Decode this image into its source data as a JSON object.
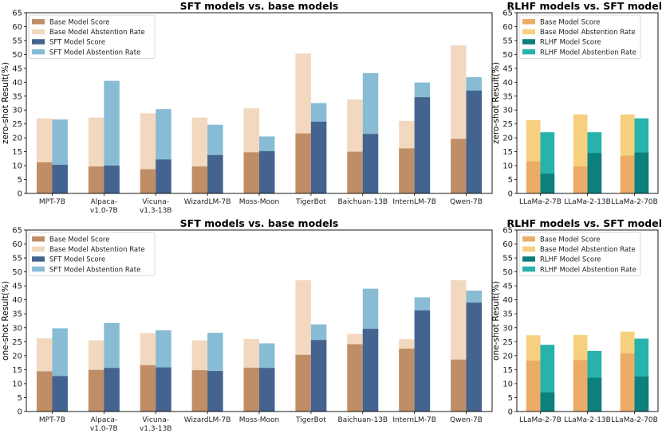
{
  "colors": {
    "base_score": "#c08e66",
    "base_abst": "#f2d8bf",
    "sft_score": "#44648f",
    "sft_abst": "#88bcd4",
    "rlhf_base_score": "#ebac67",
    "rlhf_base_abst": "#f6d07e",
    "rlhf_score": "#0d7f7c",
    "rlhf_abst": "#27b2ab"
  },
  "chart_data": [
    {
      "type": "bar",
      "title": "SFT models vs. base models",
      "ylabel": "zero-shot Result(%)",
      "ylim": [
        0,
        65
      ],
      "yticks": [
        0,
        5,
        10,
        15,
        20,
        25,
        30,
        35,
        40,
        45,
        50,
        55,
        60,
        65
      ],
      "categories": [
        "MPT-7B",
        "Alpaca-\nv1.0-7B",
        "Vicuna-\nv1.3-13B",
        "WizardLM-7B",
        "Moss-Moon",
        "TigerBot",
        "Baichuan-13B",
        "InternLM-7B",
        "Qwen-7B"
      ],
      "series": [
        {
          "name": "Base Model Score",
          "values": [
            11.2,
            9.7,
            8.7,
            9.7,
            14.8,
            21.6,
            15.0,
            16.2,
            19.6
          ]
        },
        {
          "name": "Base Model Abstention Rate",
          "values": [
            27.0,
            27.3,
            28.8,
            27.3,
            30.6,
            50.3,
            33.8,
            26.1,
            53.3
          ]
        },
        {
          "name": "SFT Model Score",
          "values": [
            10.3,
            10.0,
            12.2,
            13.8,
            15.2,
            25.8,
            21.4,
            34.6,
            37.0
          ]
        },
        {
          "name": "SFT Model Abstention Rate",
          "values": [
            26.6,
            40.5,
            30.3,
            24.7,
            20.5,
            32.5,
            43.3,
            39.9,
            41.8
          ]
        }
      ],
      "legend": [
        "Base Model Score",
        "Base Model Abstention Rate",
        "SFT Model Score",
        "SFT Model Abstention Rate"
      ]
    },
    {
      "type": "bar",
      "title": "RLHF models vs. SFT models",
      "ylabel": "zero-shot Result(%)",
      "ylim": [
        0,
        65
      ],
      "yticks": [
        0,
        5,
        10,
        15,
        20,
        25,
        30,
        35,
        40,
        45,
        50,
        55,
        60,
        65
      ],
      "categories": [
        "LLaMa-2-7B",
        "LLaMa-2-13B",
        "LLaMa-2-70B"
      ],
      "series": [
        {
          "name": "Base Model Score",
          "values": [
            11.5,
            9.7,
            13.6
          ]
        },
        {
          "name": "Base Model Abstention Rate",
          "values": [
            26.4,
            28.4,
            28.4
          ]
        },
        {
          "name": "RLHF Model Score",
          "values": [
            7.1,
            14.5,
            14.7
          ]
        },
        {
          "name": "RLHF Model Abstention Rate",
          "values": [
            22.0,
            22.0,
            27.0
          ]
        }
      ],
      "legend": [
        "Base Model Score",
        "Base Model Abstention Rate",
        "RLHF Model Score",
        "RLHF Model Abstention Rate"
      ]
    },
    {
      "type": "bar",
      "title": "SFT models vs. base models",
      "ylabel": "one-shot Result(%)",
      "ylim": [
        0,
        65
      ],
      "yticks": [
        0,
        5,
        10,
        15,
        20,
        25,
        30,
        35,
        40,
        45,
        50,
        55,
        60,
        65
      ],
      "categories": [
        "MPT-7B",
        "Alpaca-\nv1.0-7B",
        "Vicuna-\nv1.3-13B",
        "WizardLM-7B",
        "Moss-Moon",
        "TigerBot",
        "Baichuan-13B",
        "InternLM-7B",
        "Qwen-7B"
      ],
      "series": [
        {
          "name": "Base Model Score",
          "values": [
            14.4,
            14.9,
            16.6,
            14.8,
            15.7,
            20.3,
            24.1,
            22.5,
            18.6
          ]
        },
        {
          "name": "Base Model Abstention Rate",
          "values": [
            26.2,
            25.5,
            28.1,
            25.5,
            26.0,
            47.0,
            27.8,
            25.9,
            47.0
          ]
        },
        {
          "name": "SFT Model Score",
          "values": [
            12.7,
            15.6,
            15.8,
            14.5,
            15.6,
            25.6,
            29.6,
            36.2,
            39.0
          ]
        },
        {
          "name": "SFT Model Abstention Rate",
          "values": [
            29.8,
            31.7,
            29.1,
            28.2,
            24.4,
            31.2,
            44.0,
            40.9,
            43.3
          ]
        }
      ],
      "legend": [
        "Base Model Score",
        "Base Model Abstention Rate",
        "SFT Model Score",
        "SFT Model Abstention Rate"
      ]
    },
    {
      "type": "bar",
      "title": "RLHF models vs. SFT models",
      "ylabel": "one-shot Result(%)",
      "ylim": [
        0,
        65
      ],
      "yticks": [
        0,
        5,
        10,
        15,
        20,
        25,
        30,
        35,
        40,
        45,
        50,
        55,
        60,
        65
      ],
      "categories": [
        "LLaMa-2-7B",
        "LLaMa-2-13B",
        "LLaMa-2-70B"
      ],
      "series": [
        {
          "name": "Base Model Score",
          "values": [
            18.2,
            18.4,
            20.8
          ]
        },
        {
          "name": "Base Model Abstention Rate",
          "values": [
            27.3,
            27.4,
            28.6
          ]
        },
        {
          "name": "RLHF Model Score",
          "values": [
            6.8,
            12.1,
            12.5
          ]
        },
        {
          "name": "RLHF Model Abstention Rate",
          "values": [
            23.9,
            21.7,
            26.1
          ]
        }
      ],
      "legend": [
        "Base Model Score",
        "Base Model Abstention Rate",
        "RLHF Model Score",
        "RLHF Model Abstention Rate"
      ]
    }
  ]
}
